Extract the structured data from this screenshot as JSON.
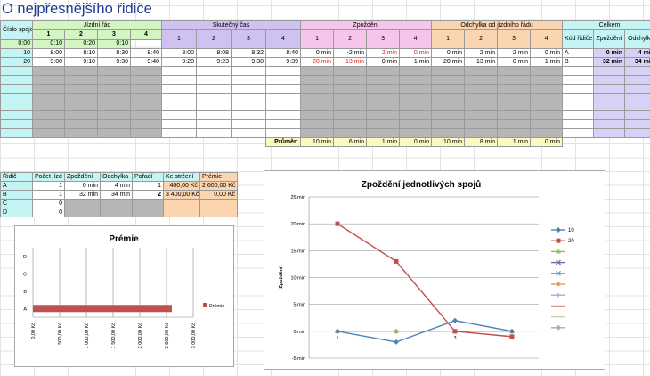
{
  "sheet_title": "O nejpřesnějšího řidiče",
  "headers": {
    "cislo_spoje": "Číslo spoje",
    "jizdni_rad": "Jízdní řád",
    "skutecny_cas": "Skutečný čas",
    "zpozdeni": "Zpoždění",
    "odchylka_od_jr": "Odchylka od jízdního řádu",
    "celkem": "Celkem",
    "kod_ridice": "Kód řidiče",
    "zpozdeni_col": "Zpoždění",
    "odchylky_col": "Odchylky",
    "col_numbers": [
      "1",
      "2",
      "3",
      "4"
    ],
    "intervals": [
      "0:00",
      "0:10",
      "0:20",
      "0:10"
    ]
  },
  "rows": [
    {
      "spoj": "10",
      "jr": [
        "8:00",
        "8:10",
        "8:30",
        "8:40"
      ],
      "sk": [
        "8:00",
        "8:08",
        "8:32",
        "8:40"
      ],
      "zp": [
        "0 min",
        "-2 min",
        "2 min",
        "0 min"
      ],
      "od": [
        "0 min",
        "2 min",
        "2 min",
        "0 min"
      ],
      "kod": "A",
      "cz": "0 min",
      "co": "4 min"
    },
    {
      "spoj": "20",
      "jr": [
        "9:00",
        "9:10",
        "9:30",
        "9:40"
      ],
      "sk": [
        "9:20",
        "9:23",
        "9:30",
        "9:39"
      ],
      "zp": [
        "20 min",
        "13 min",
        "0 min",
        "-1 min"
      ],
      "od": [
        "20 min",
        "13 min",
        "0 min",
        "1 min"
      ],
      "kod": "B",
      "cz": "32 min",
      "co": "34 min"
    }
  ],
  "red_cells": [
    [
      false,
      false,
      true,
      true
    ],
    [
      true,
      true,
      false,
      false
    ]
  ],
  "prumer": {
    "label": "Průměr:",
    "zp": [
      "10 min",
      "6 min",
      "1 min",
      "0 min"
    ],
    "od": [
      "10 min",
      "8 min",
      "1 min",
      "0 min"
    ]
  },
  "driver_table": {
    "headers": [
      "Řidič",
      "Počet jízd",
      "Zpoždění",
      "Odchylka",
      "Pořadí",
      "Ke stržení",
      "Prémie"
    ],
    "rows": [
      [
        "A",
        "1",
        "0 min",
        "4 min",
        "1",
        "400,00 Kč",
        "2 600,00 Kč"
      ],
      [
        "B",
        "1",
        "32 min",
        "34 min",
        "2",
        "3 400,00 Kč",
        "0,00 Kč"
      ],
      [
        "C",
        "0",
        "",
        "",
        "",
        "",
        ""
      ],
      [
        "D",
        "0",
        "",
        "",
        "",
        "",
        ""
      ]
    ]
  },
  "charts": {
    "accent_red": "#c0504d",
    "accent_blue": "#4f81bd"
  },
  "chart_data": [
    {
      "type": "bar",
      "orientation": "horizontal",
      "title": "Prémie",
      "categories": [
        "A",
        "B",
        "C",
        "D"
      ],
      "series": [
        {
          "name": "Prémie",
          "values": [
            2600,
            0,
            0,
            0
          ]
        }
      ],
      "xlim": [
        0,
        3000
      ],
      "x_ticks": [
        "0,00 Kč",
        "500,00 Kč",
        "1 000,00 Kč",
        "1 500,00 Kč",
        "2 000,00 Kč",
        "2 500,00 Kč",
        "3 000,00 Kč"
      ],
      "legend": "right"
    },
    {
      "type": "line",
      "title": "Zpoždění jednotlivých spojů",
      "ylabel": "Zpoždění",
      "x": [
        "1",
        "2",
        "3",
        "4"
      ],
      "x_tick_labels": [
        "1",
        "",
        "3",
        "4"
      ],
      "ylim": [
        -5,
        25
      ],
      "y_ticks": [
        "-5 min",
        "0 min",
        "5 min",
        "10 min",
        "15 min",
        "20 min",
        "25 min"
      ],
      "series": [
        {
          "name": "10",
          "color": "#4f81bd",
          "marker": "diamond",
          "values": [
            0,
            -2,
            2,
            0
          ]
        },
        {
          "name": "20",
          "color": "#c0504d",
          "marker": "square",
          "values": [
            20,
            13,
            0,
            -1
          ]
        },
        {
          "name": "",
          "color": "#9bbb59",
          "marker": "triangle",
          "values": [
            0,
            0,
            0,
            0
          ]
        },
        {
          "name": "",
          "color": "#8064a2",
          "marker": "x",
          "values": [
            0,
            0,
            0,
            0
          ]
        },
        {
          "name": "",
          "color": "#4bacc6",
          "marker": "x",
          "values": [
            0,
            0,
            0,
            0
          ]
        },
        {
          "name": "",
          "color": "#f79646",
          "marker": "circle",
          "values": [
            0,
            0,
            0,
            0
          ]
        },
        {
          "name": "",
          "color": "#95b3d7",
          "marker": "plus",
          "values": [
            0,
            0,
            0,
            0
          ]
        },
        {
          "name": "",
          "color": "#d99694",
          "marker": "dash",
          "values": [
            0,
            0,
            0,
            0
          ]
        },
        {
          "name": "",
          "color": "#c3d69b",
          "marker": "dash",
          "values": [
            0,
            0,
            0,
            0
          ]
        },
        {
          "name": "",
          "color": "#b3a2c7",
          "marker": "diamond",
          "values": [
            0,
            0,
            0,
            0
          ]
        }
      ],
      "legend": "right"
    }
  ]
}
